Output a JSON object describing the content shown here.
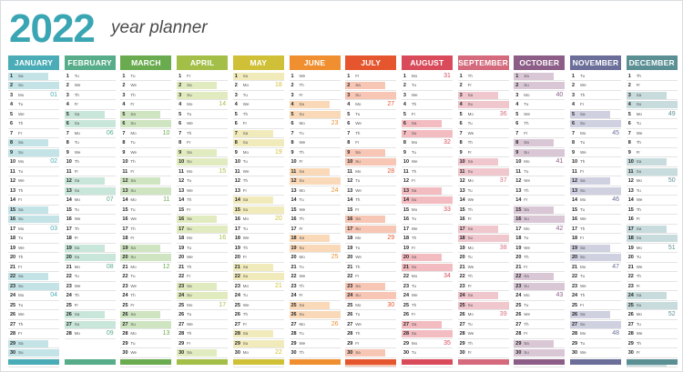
{
  "header": {
    "year": "2022",
    "subtitle": "year planner"
  },
  "colors": {
    "year_text": "#3aa5b3",
    "month_colors": [
      "#4aacb6",
      "#57ad8a",
      "#6aab4f",
      "#a3bf47",
      "#d0c038",
      "#ef8f2f",
      "#e5562e",
      "#d94a5a",
      "#d46a7c",
      "#8c5d86",
      "#6b6e99",
      "#5a8f94"
    ],
    "month_tints": [
      "#c3e3e6",
      "#c9e6da",
      "#cfe5c1",
      "#e1ebc0",
      "#f1ebbc",
      "#fad9b8",
      "#f7c6b5",
      "#f3bcc1",
      "#f1c7ce",
      "#d9c7d6",
      "#cfd0e0",
      "#c8dcde"
    ]
  },
  "week_days": [
    "Mo",
    "Tu",
    "We",
    "Th",
    "Fr",
    "Sa",
    "Su"
  ],
  "year_start_weekday": 5,
  "months": [
    {
      "name": "JANUARY",
      "days": 31
    },
    {
      "name": "FEBRUARY",
      "days": 28
    },
    {
      "name": "MARCH",
      "days": 31
    },
    {
      "name": "APRIL",
      "days": 30
    },
    {
      "name": "MAY",
      "days": 31
    },
    {
      "name": "JUNE",
      "days": 30
    },
    {
      "name": "JULY",
      "days": 31
    },
    {
      "name": "AUGUST",
      "days": 31
    },
    {
      "name": "SEPTEMBER",
      "days": 30
    },
    {
      "name": "OCTOBER",
      "days": 31
    },
    {
      "name": "NOVEMBER",
      "days": 30
    },
    {
      "name": "DECEMBER",
      "days": 31
    }
  ]
}
